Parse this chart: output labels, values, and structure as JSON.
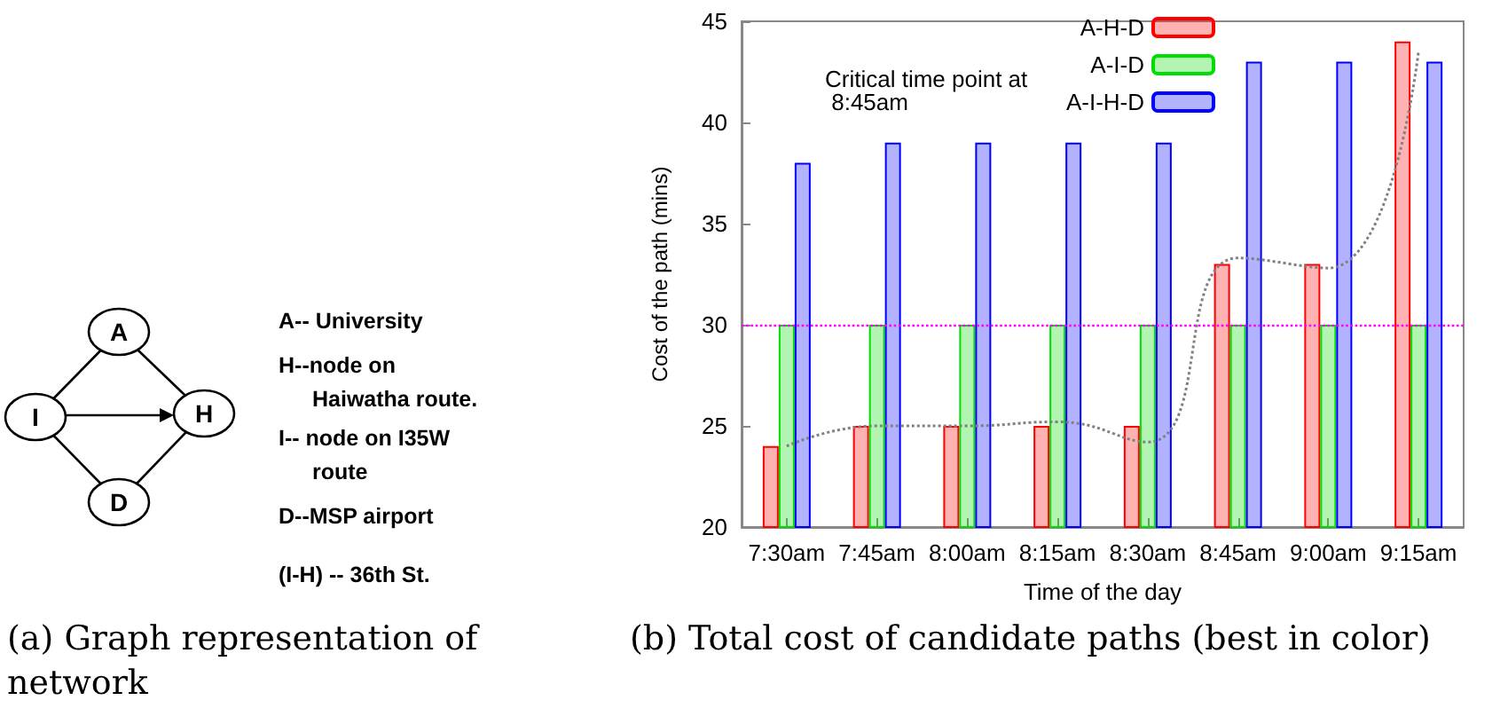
{
  "chart_data": [
    {
      "type": "other",
      "annotations": [
        "A",
        "H",
        "I",
        "D",
        "A-- University",
        "H--node on\nHaiwatha route.",
        "I-- node on I35W\nroute",
        "D--MSP airport",
        "(I-H) -- 36th St.",
        "(a) Graph representation of network"
      ]
    },
    {
      "type": "bar",
      "xlabel": "Time of the day",
      "ylabel": "Cost of the path (mins)",
      "categories": [
        "7:30am",
        "7:45am",
        "8:00am",
        "8:15am",
        "8:30am",
        "8:45am",
        "9:00am",
        "9:15am"
      ],
      "series": [
        {
          "name": "A-H-D",
          "color": "#ff0000",
          "values": [
            24,
            25,
            25,
            25,
            25,
            33,
            33,
            44
          ]
        },
        {
          "name": "A-I-D",
          "color": "#00dd00",
          "values": [
            30,
            30,
            30,
            30,
            30,
            30,
            30,
            30
          ]
        },
        {
          "name": "A-I-H-D",
          "color": "#0000ff",
          "values": [
            38,
            39,
            39,
            39,
            39,
            43,
            43,
            43
          ]
        },
        {
          "type": "line",
          "color": "#808080",
          "line_style": "dotted",
          "marker": "none",
          "values": [
            24,
            25,
            25,
            25.2,
            24.2,
            33.3,
            32.8,
            43.5
          ]
        }
      ],
      "ylim": [
        20,
        45
      ],
      "yticks": [
        20,
        25,
        30,
        35,
        40,
        45
      ],
      "grid": false,
      "legend": "top right",
      "ref_lines": [
        {
          "axis": "y",
          "value": 30,
          "color": "#ff00ff",
          "line_style": "dotted"
        }
      ],
      "annotations": [
        "Critical time point at\n 8:45am",
        "(b) Total cost of candidate paths (best in color)"
      ]
    }
  ]
}
